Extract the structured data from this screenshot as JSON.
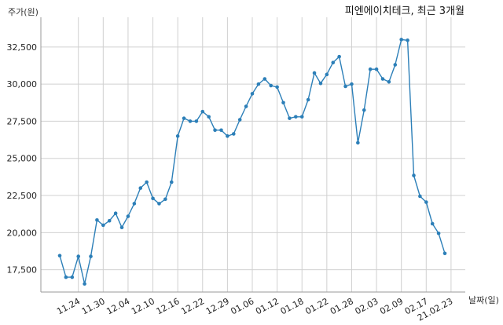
{
  "chart_data": {
    "type": "line",
    "title": "피엔에이치테크, 최근 3개월",
    "ylabel": "주가(원)",
    "xlabel": "날짜(일)",
    "ylim": [
      16000,
      34500
    ],
    "y_ticks": [
      17500,
      20000,
      22500,
      25000,
      27500,
      30000,
      32500
    ],
    "y_tick_labels": [
      "17,500",
      "20,000",
      "22,500",
      "25,000",
      "27,500",
      "30,000",
      "32,500"
    ],
    "x_tick_labels": [
      "11.24",
      "11.30",
      "12.04",
      "12.10",
      "12.16",
      "12.22",
      "12.29",
      "01.06",
      "01.12",
      "01.18",
      "01.22",
      "01.28",
      "02.03",
      "02.09",
      "02.17",
      "21.02.23"
    ],
    "x_tick_index": [
      3,
      7,
      11,
      15,
      19,
      23,
      27,
      31,
      35,
      39,
      43,
      47,
      51,
      55,
      59,
      63
    ],
    "grid": true,
    "color": "#2c7fb8",
    "series": [
      {
        "values": [
          18450,
          17000,
          17000,
          18400,
          16550,
          18400,
          20850,
          20500,
          20800,
          21300,
          20350,
          21100,
          21950,
          23000,
          23400,
          22300,
          21950,
          22250,
          23400,
          26500,
          27700,
          27500,
          27500,
          28150,
          27800,
          26900,
          26900,
          26500,
          26650,
          27600,
          28500,
          29350,
          30000,
          30350,
          29900,
          29800,
          28750,
          27700,
          27800,
          27800,
          28950,
          30750,
          30050,
          30650,
          31450,
          31850,
          29850,
          30000,
          26050,
          28250,
          31000,
          31000,
          30350,
          30150,
          31300,
          33000,
          32950,
          23850,
          22450,
          22050,
          20600,
          19950,
          18600
        ]
      }
    ]
  }
}
